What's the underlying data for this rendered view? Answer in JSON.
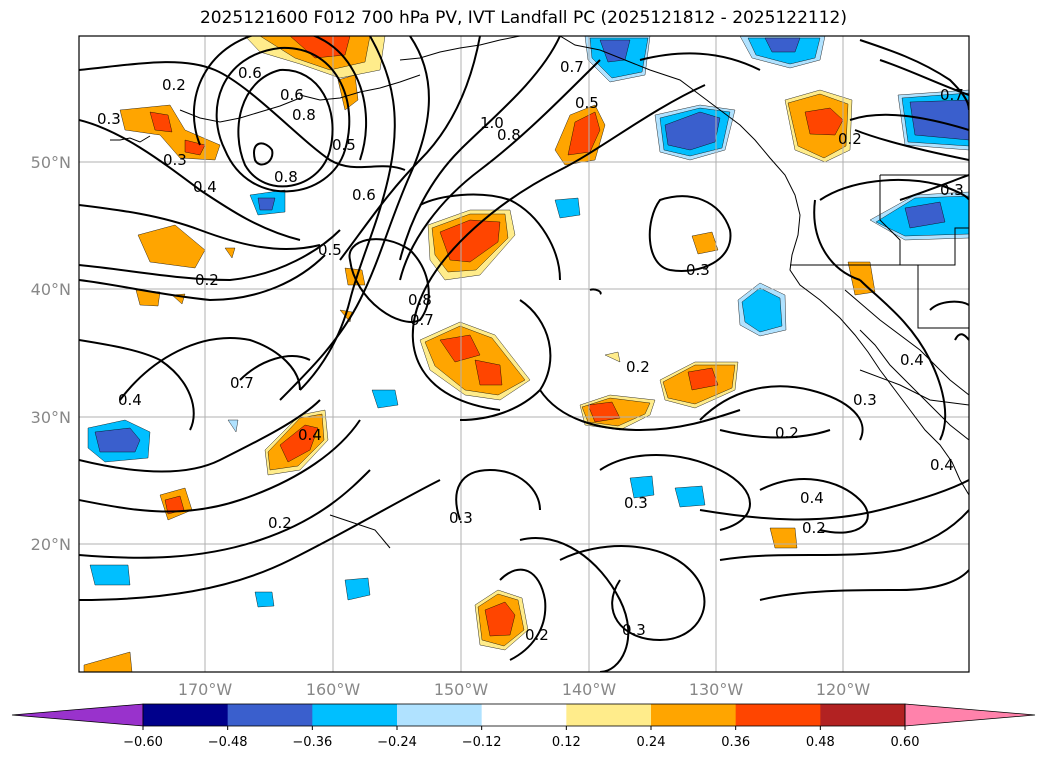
{
  "title": "2025121600 F012 700 hPa PV, IVT Landfall PC (2025121812 - 2025122112)",
  "lat_labels": [
    "50°N",
    "40°N",
    "30°N",
    "20°N"
  ],
  "lon_labels": [
    "170°W",
    "160°W",
    "150°W",
    "140°W",
    "130°W",
    "120°W"
  ],
  "contour_labels": [
    "0.2",
    "0.3",
    "0.6",
    "0.3",
    "0.4",
    "0.8",
    "0.5",
    "0.6",
    "0.5",
    "1.0",
    "0.8",
    "0.7",
    "0.5",
    "0.6",
    "0.8",
    "0.7",
    "0.2",
    "0.8",
    "0.7",
    "0.7",
    "0.4",
    "0.4",
    "0.2",
    "0.3",
    "0.2",
    "0.3",
    "0.2",
    "0.3",
    "0.2",
    "0.4",
    "0.2",
    "0.3",
    "0.4",
    "0.3",
    "0.4",
    "0.2",
    "0.3"
  ],
  "colorbar": {
    "ticks": [
      "−0.60",
      "−0.48",
      "−0.36",
      "−0.24",
      "−0.12",
      "0.12",
      "0.24",
      "0.36",
      "0.48",
      "0.60"
    ],
    "colors": [
      "#9932cc",
      "#00008b",
      "#3a5fcd",
      "#00bfff",
      "#b0e2ff",
      "#ffffff",
      "#ffec8b",
      "#ffa500",
      "#ff4500",
      "#b22222",
      "#ff82ab"
    ]
  }
}
